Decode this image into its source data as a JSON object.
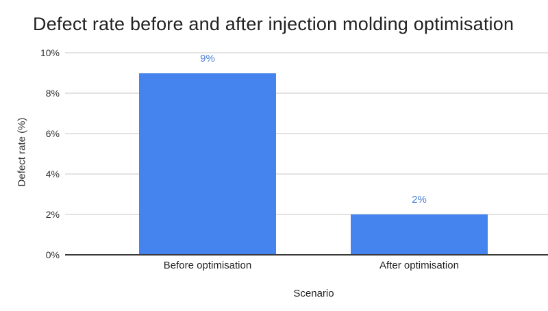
{
  "chart_data": {
    "type": "bar",
    "title": "Defect rate before and after injection molding optimisation",
    "categories": [
      "Before optimisation",
      "After optimisation"
    ],
    "values": [
      9,
      2
    ],
    "value_labels": [
      "9%",
      "2%"
    ],
    "xlabel": "Scenario",
    "ylabel": "Defect rate (%)",
    "ylim": [
      0,
      10
    ],
    "yticks": [
      0,
      2,
      4,
      6,
      8,
      10
    ],
    "ytick_labels": [
      "0%",
      "2%",
      "4%",
      "6%",
      "8%",
      "10%"
    ],
    "grid": true,
    "legend": "none",
    "bar_color": "#4584ee",
    "value_label_color": "#4d82d6",
    "background_color": "#ffffff"
  }
}
